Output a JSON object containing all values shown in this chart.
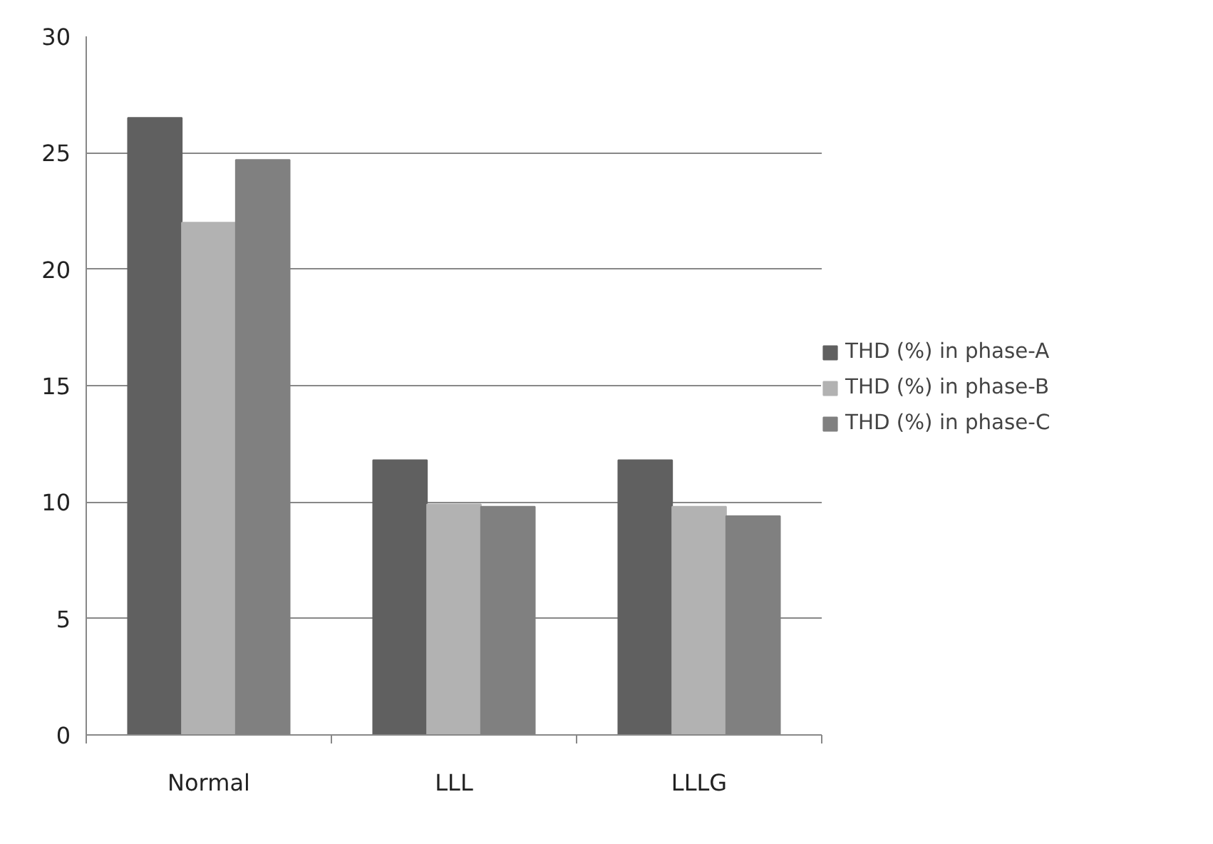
{
  "chart_data": {
    "type": "bar",
    "categories": [
      "Normal",
      "LLL",
      "LLLG"
    ],
    "series": [
      {
        "name": "THD (%) in phase-A",
        "color": "#606060",
        "values": [
          26.5,
          11.8,
          11.8
        ]
      },
      {
        "name": "THD (%) in phase-B",
        "color": "#b2b2b2",
        "values": [
          22.0,
          9.9,
          9.8
        ]
      },
      {
        "name": "THD (%) in phase-C",
        "color": "#808080",
        "values": [
          24.7,
          9.8,
          9.4
        ]
      }
    ],
    "ylim": [
      0,
      30
    ],
    "yticks": [
      0,
      5,
      10,
      15,
      20,
      25,
      30
    ],
    "grid": "y",
    "legend": "right"
  }
}
